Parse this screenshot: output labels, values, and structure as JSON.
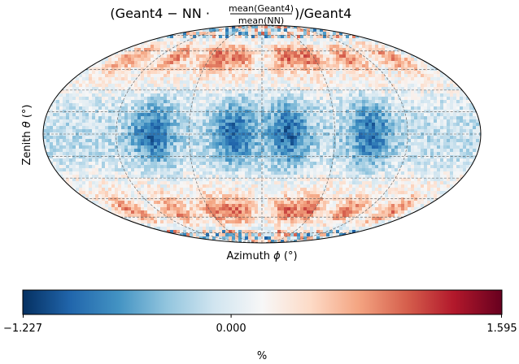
{
  "chart_data": {
    "type": "heatmap",
    "projection": "mollweide",
    "title": {
      "prefix": "(Geant4 − NN · ",
      "frac_numerator": "mean(Geant4)",
      "frac_denominator": "mean(NN)",
      "suffix": ")/Geant4"
    },
    "xlabel": {
      "text": "Azimuth ",
      "symbol": "ϕ",
      "unit": " (°)"
    },
    "ylabel": {
      "text": "Zenith ",
      "symbol": "θ",
      "unit": " (°)"
    },
    "colorbar": {
      "colormap": "RdBu_r",
      "stops": [
        "#053061",
        "#2166ac",
        "#4393c3",
        "#92c5de",
        "#d1e5f0",
        "#f7f7f7",
        "#fddbc7",
        "#f4a582",
        "#d6604d",
        "#b2182b",
        "#67001f"
      ],
      "min": -1.227,
      "mid": 0.0,
      "max": 1.595,
      "tick_labels": [
        "−1.227",
        "0.000",
        "1.595"
      ],
      "label": "%"
    },
    "grid": true,
    "meridian_step_deg": 60,
    "parallel_step_deg": 15,
    "pattern": {
      "description_values": "relative difference per sky pixel",
      "negative_centers_lon_deg": [
        -90,
        -22,
        22,
        90
      ],
      "positive_band_lat_deg": [
        55,
        -55
      ],
      "positive_band_lon_deg": [
        -150,
        -100,
        -55,
        -25,
        25,
        55,
        100,
        150
      ]
    }
  }
}
